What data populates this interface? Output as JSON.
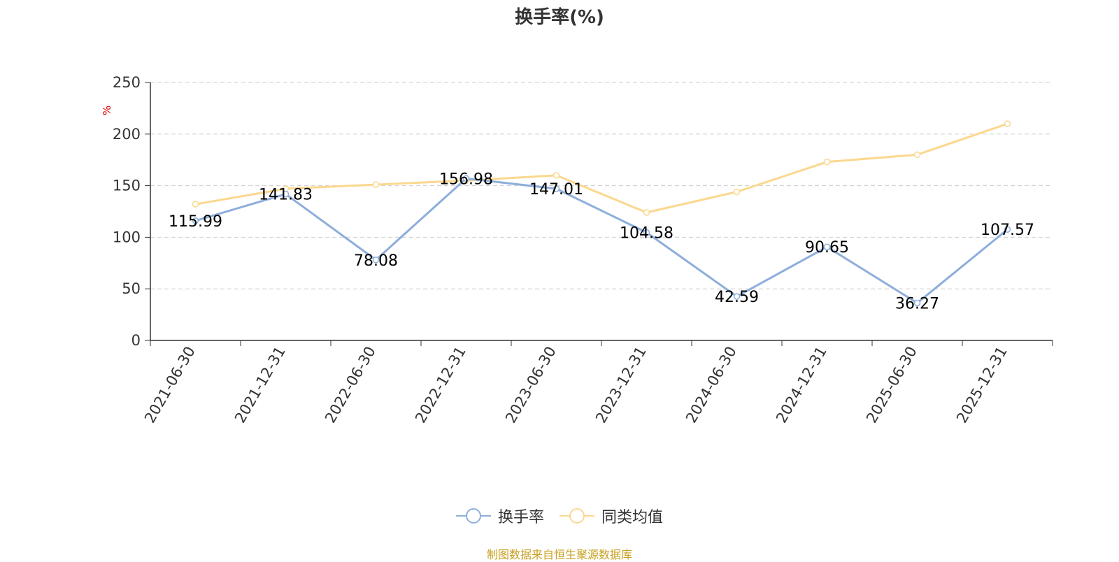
{
  "page_title": "换手率(%)",
  "source_note": "制图数据来自恒生聚源数据库",
  "colors": {
    "series_turnover": "#8eaedb",
    "series_avg": "#fbd88f",
    "ylabel": "#e00000",
    "grid": "#cccccc",
    "axis": "#333333",
    "source": "#c8a022"
  },
  "chart_data": {
    "type": "line",
    "title": "换手率(%)",
    "ylabel": "%",
    "xlabel": "",
    "ylim": [
      0,
      250
    ],
    "yticks": [
      0,
      50,
      100,
      150,
      200,
      250
    ],
    "grid": true,
    "legend_position": "bottom-center",
    "categories": [
      "2021-06-30",
      "2021-12-31",
      "2022-06-30",
      "2022-12-31",
      "2023-06-30",
      "2023-12-31",
      "2024-06-30",
      "2024-12-31",
      "2025-06-30",
      "2025-12-31"
    ],
    "series": [
      {
        "name": "换手率",
        "values": [
          115.99,
          141.83,
          78.08,
          156.98,
          147.01,
          104.58,
          42.59,
          90.65,
          36.27,
          107.57
        ],
        "data_labels": [
          "115.99",
          "141.83",
          "78.08",
          "156.98",
          "147.01",
          "104.58",
          "42.59",
          "90.65",
          "36.27",
          "107.57"
        ]
      },
      {
        "name": "同类均值",
        "values": [
          132,
          147,
          151,
          155,
          160,
          124,
          144,
          173,
          180,
          210
        ]
      }
    ]
  }
}
